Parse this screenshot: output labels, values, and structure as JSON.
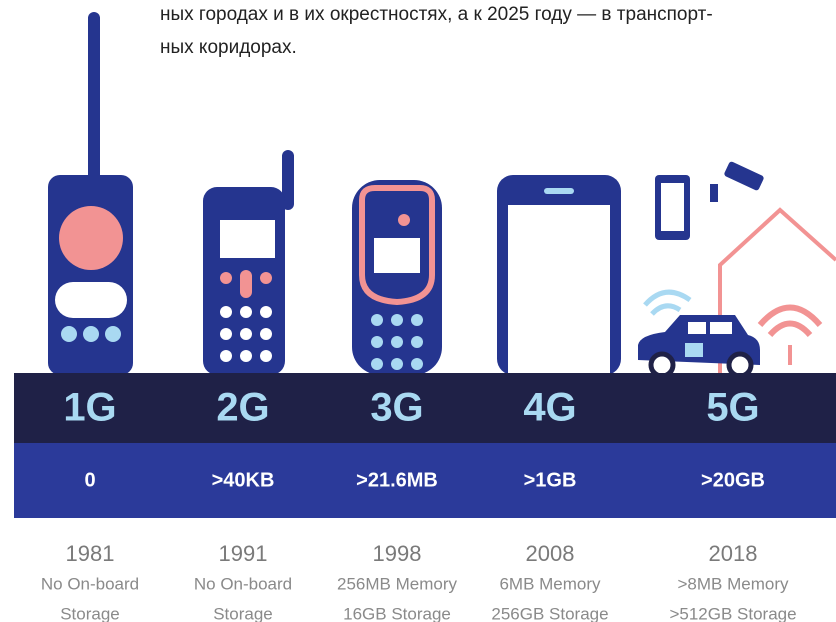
{
  "intro": [
    "ных городах и в их окрестностях, а к 2025 году — в транспорт-",
    "ных коридорах."
  ],
  "generations": [
    {
      "label": "1G",
      "data": "0",
      "year": "1981",
      "lines": [
        "No On-board",
        "Storage"
      ]
    },
    {
      "label": "2G",
      "data": ">40KB",
      "year": "1991",
      "lines": [
        "No On-board",
        "Storage"
      ]
    },
    {
      "label": "3G",
      "data": ">21.6MB",
      "year": "1998",
      "lines": [
        "256MB Memory",
        "16GB Storage"
      ]
    },
    {
      "label": "4G",
      "data": ">1GB",
      "year": "2008",
      "lines": [
        "6MB Memory",
        "256GB Storage"
      ]
    },
    {
      "label": "5G",
      "data": ">20GB",
      "year": "2018",
      "lines": [
        ">8MB Memory",
        ">512GB Storage"
      ]
    }
  ]
}
